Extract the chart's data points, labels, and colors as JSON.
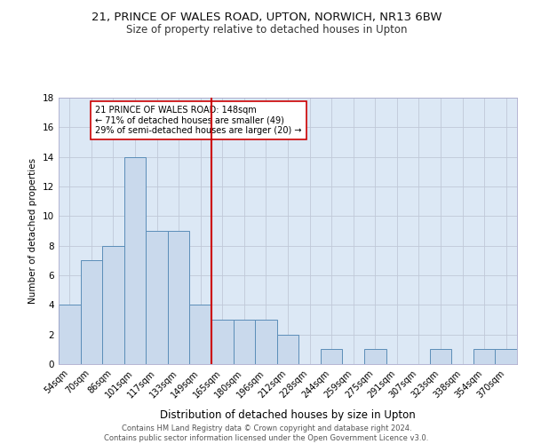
{
  "title": "21, PRINCE OF WALES ROAD, UPTON, NORWICH, NR13 6BW",
  "subtitle": "Size of property relative to detached houses in Upton",
  "xlabel": "Distribution of detached houses by size in Upton",
  "ylabel": "Number of detached properties",
  "bins": [
    "54sqm",
    "70sqm",
    "86sqm",
    "101sqm",
    "117sqm",
    "133sqm",
    "149sqm",
    "165sqm",
    "180sqm",
    "196sqm",
    "212sqm",
    "228sqm",
    "244sqm",
    "259sqm",
    "275sqm",
    "291sqm",
    "307sqm",
    "323sqm",
    "338sqm",
    "354sqm",
    "370sqm"
  ],
  "counts": [
    4,
    7,
    8,
    14,
    9,
    9,
    4,
    3,
    3,
    3,
    2,
    0,
    1,
    0,
    1,
    0,
    0,
    1,
    0,
    1,
    1
  ],
  "bar_color": "#c9d9ec",
  "bar_edge_color": "#5b8db8",
  "property_line_color": "#cc0000",
  "annotation_text": "21 PRINCE OF WALES ROAD: 148sqm\n← 71% of detached houses are smaller (49)\n29% of semi-detached houses are larger (20) →",
  "annotation_box_color": "#ffffff",
  "annotation_box_edge_color": "#cc0000",
  "ylim": [
    0,
    18
  ],
  "yticks": [
    0,
    2,
    4,
    6,
    8,
    10,
    12,
    14,
    16,
    18
  ],
  "background_color": "#dce8f5",
  "footer_line1": "Contains HM Land Registry data © Crown copyright and database right 2024.",
  "footer_line2": "Contains public sector information licensed under the Open Government Licence v3.0.",
  "title_fontsize": 9.5,
  "subtitle_fontsize": 8.5,
  "footer_fontsize": 6.0
}
